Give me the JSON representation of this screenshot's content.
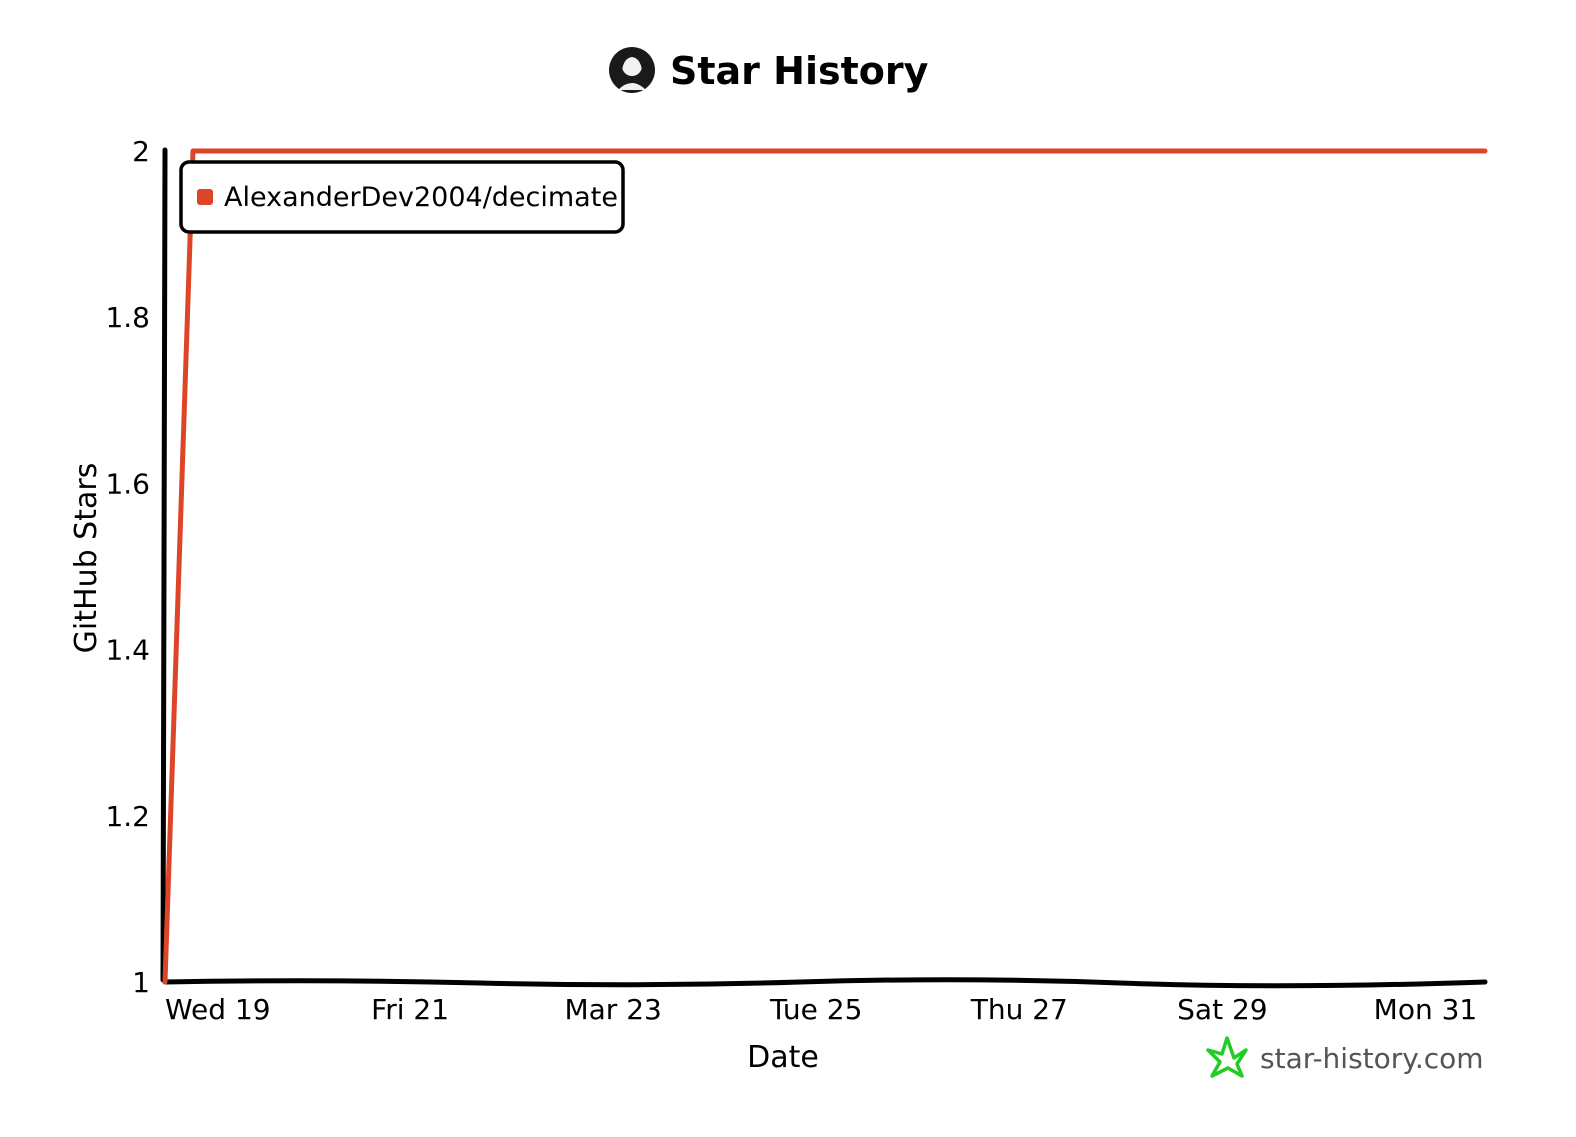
{
  "chart_data": {
    "type": "line",
    "title": "Star History",
    "xlabel": "Date",
    "ylabel": "GitHub Stars",
    "x_ticks": [
      "Wed 19",
      "Fri 21",
      "Mar 23",
      "Tue 25",
      "Thu 27",
      "Sat 29",
      "Mon 31"
    ],
    "y_ticks": [
      "1",
      "1.2",
      "1.4",
      "1.6",
      "1.8",
      "2"
    ],
    "ylim": [
      1,
      2
    ],
    "xlim": [
      "Mar 19",
      "Apr 1"
    ],
    "series": [
      {
        "name": "AlexanderDev2004/decimate",
        "color": "#dd4528",
        "x": [
          "Mar 19",
          "Mar 19",
          "Apr 1"
        ],
        "values": [
          1,
          2,
          2
        ]
      }
    ],
    "legend_position": "top-left",
    "grid": false
  },
  "watermark": {
    "text": "star-history.com",
    "icon": "star-outline-icon",
    "color": "#22cc22"
  },
  "header": {
    "avatar_icon": "avatar-icon"
  }
}
